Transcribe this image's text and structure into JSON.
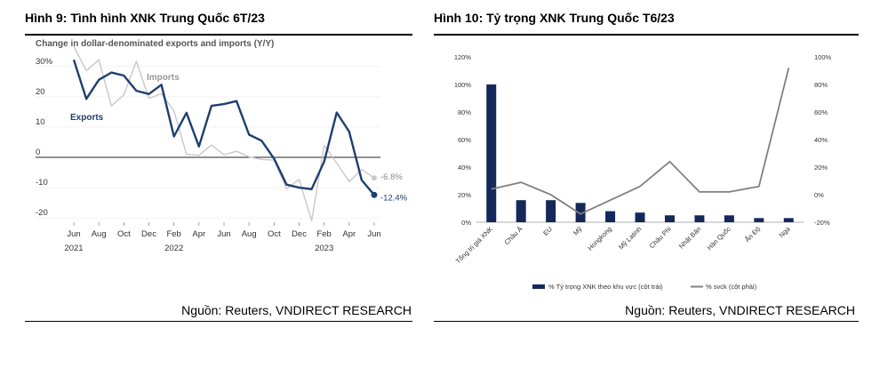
{
  "left": {
    "title": "Hình 9: Tình hình XNK Trung Quốc 6T/23",
    "source": "Nguồn: Reuters, VNDIRECT RESEARCH"
  },
  "right": {
    "title": "Hình 10: Tỷ trọng XNK Trung Quốc T6/23",
    "source": "Nguồn: Reuters, VNDIRECT RESEARCH"
  },
  "chart_data": [
    {
      "type": "line",
      "title": "Change in dollar-denominated exports and imports (Y/Y)",
      "y_ticks": [
        "30%",
        "20",
        "10",
        "0",
        "-10",
        "-20"
      ],
      "ylim": [
        -22,
        32
      ],
      "x_tick_labels": [
        {
          "label": "Jun",
          "sub": "2021"
        },
        {
          "label": "Aug",
          "sub": ""
        },
        {
          "label": "Oct",
          "sub": ""
        },
        {
          "label": "Dec",
          "sub": ""
        },
        {
          "label": "Feb",
          "sub": "2022"
        },
        {
          "label": "Apr",
          "sub": ""
        },
        {
          "label": "Jun",
          "sub": ""
        },
        {
          "label": "Aug",
          "sub": ""
        },
        {
          "label": "Oct",
          "sub": ""
        },
        {
          "label": "Dec",
          "sub": ""
        },
        {
          "label": "Feb",
          "sub": "2023"
        },
        {
          "label": "Apr",
          "sub": ""
        },
        {
          "label": "Jun",
          "sub": ""
        }
      ],
      "series": [
        {
          "name": "Exports",
          "color": "#1f3f6e",
          "end_label": "-12.4%",
          "values": [
            32.2,
            19.3,
            25.6,
            28.0,
            27.0,
            22.0,
            20.9,
            24.0,
            6.9,
            14.7,
            3.6,
            17.0,
            17.6,
            18.6,
            7.5,
            5.5,
            -0.4,
            -9.0,
            -10.0,
            -10.5,
            -1.4,
            14.8,
            8.5,
            -7.5,
            -12.4
          ]
        },
        {
          "name": "Imports",
          "color": "#c8c8c8",
          "end_label": "-6.8%",
          "values": [
            36.7,
            28.6,
            32.2,
            17.0,
            20.6,
            31.7,
            19.5,
            21.0,
            15.4,
            1.0,
            0.7,
            4.1,
            0.9,
            2.0,
            0.2,
            -0.7,
            -0.9,
            -10.4,
            -7.3,
            -20.9,
            4.0,
            -1.9,
            -8.0,
            -4.0,
            -6.8
          ]
        }
      ]
    },
    {
      "type": "bar",
      "categories": [
        "Tổng trị giá XNK",
        "Châu Á",
        "EU",
        "Mỹ",
        "Hongkong",
        "Mỹ Latinh",
        "Châu Phi",
        "Nhật Bản",
        "Hàn Quốc",
        "Ấn Độ",
        "Nga"
      ],
      "left_axis_ticks": [
        "0%",
        "20%",
        "40%",
        "60%",
        "80%",
        "100%",
        "120%"
      ],
      "right_axis_ticks": [
        "-20%",
        "0%",
        "20%",
        "40%",
        "60%",
        "80%",
        "100%"
      ],
      "ylim_left": [
        0,
        120
      ],
      "ylim_right": [
        -20,
        100
      ],
      "series": [
        {
          "name": "% Tỷ trọng XNK theo khu vực (cột trái)",
          "kind": "bar",
          "axis": "left",
          "color": "#14285a",
          "values": [
            100,
            16,
            16,
            14,
            8,
            7,
            5,
            5,
            5,
            3,
            3
          ]
        },
        {
          "name": "% svck (cột phải)",
          "kind": "line",
          "axis": "right",
          "color": "#808080",
          "values": [
            4,
            9,
            0,
            -14,
            -4,
            6,
            24,
            2,
            2,
            6,
            92
          ]
        }
      ],
      "legend_position": "bottom"
    }
  ]
}
